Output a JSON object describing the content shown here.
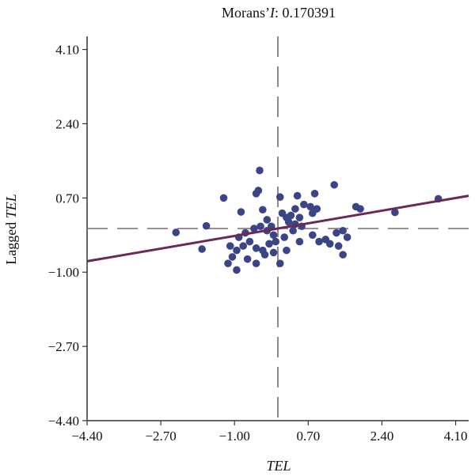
{
  "chart_data": {
    "type": "scatter",
    "title_prefix": "Morans’",
    "title_stat": "I",
    "title_value": ": 0.170391",
    "xlabel": "TEL",
    "ylabel_prefix": "Lagged ",
    "ylabel_var": "TEL",
    "xlim": [
      -4.4,
      4.4
    ],
    "ylim": [
      -4.4,
      4.4
    ],
    "xticks": [
      "−4.40",
      "−2.70",
      "−1.00",
      "0.70",
      "2.40",
      "4.10"
    ],
    "xtick_values": [
      -4.4,
      -2.7,
      -1.0,
      0.7,
      2.4,
      4.1
    ],
    "yticks": [
      "4.10",
      "2.40",
      "0.70",
      "−1.00",
      "−2.70",
      "−4.40"
    ],
    "ytick_values": [
      4.1,
      2.4,
      0.7,
      -1.0,
      -2.7,
      -4.4
    ],
    "mean_lines": {
      "x": 0.0,
      "y": 0.0
    },
    "regression": {
      "slope": 0.170391,
      "intercept": 0.0
    },
    "colors": {
      "points": "#3b4585",
      "regression": "#6b2a55",
      "mean_lines": "#7a6a72",
      "axes": "#333333"
    },
    "points": [
      [
        -2.35,
        -0.09
      ],
      [
        -1.65,
        0.06
      ],
      [
        -1.75,
        -0.47
      ],
      [
        -1.25,
        0.7
      ],
      [
        -0.45,
        0.87
      ],
      [
        -0.5,
        0.8
      ],
      [
        -0.42,
        1.33
      ],
      [
        -0.35,
        0.43
      ],
      [
        -0.85,
        0.38
      ],
      [
        0.05,
        0.72
      ],
      [
        0.45,
        0.75
      ],
      [
        0.85,
        0.8
      ],
      [
        1.3,
        1.0
      ],
      [
        1.8,
        0.5
      ],
      [
        1.9,
        0.45
      ],
      [
        2.7,
        0.37
      ],
      [
        3.7,
        0.68
      ],
      [
        -0.9,
        -0.2
      ],
      [
        -0.75,
        -0.1
      ],
      [
        -0.55,
        0.0
      ],
      [
        -0.4,
        0.05
      ],
      [
        -0.25,
        -0.05
      ],
      [
        -0.1,
        -0.15
      ],
      [
        0.1,
        0.35
      ],
      [
        0.2,
        0.25
      ],
      [
        0.3,
        0.3
      ],
      [
        0.4,
        0.1
      ],
      [
        0.5,
        0.25
      ],
      [
        0.6,
        0.55
      ],
      [
        0.75,
        0.5
      ],
      [
        0.9,
        0.45
      ],
      [
        0.8,
        0.35
      ],
      [
        0.55,
        0.05
      ],
      [
        0.35,
        -0.05
      ],
      [
        0.15,
        -0.2
      ],
      [
        -0.05,
        -0.3
      ],
      [
        -0.2,
        -0.35
      ],
      [
        -0.35,
        -0.5
      ],
      [
        -0.5,
        -0.45
      ],
      [
        -0.65,
        -0.3
      ],
      [
        -0.8,
        -0.4
      ],
      [
        -0.95,
        -0.5
      ],
      [
        -1.1,
        -0.4
      ],
      [
        -1.15,
        -0.8
      ],
      [
        -0.95,
        -0.95
      ],
      [
        -1.05,
        -0.65
      ],
      [
        -0.7,
        -0.7
      ],
      [
        -0.5,
        -0.8
      ],
      [
        -0.3,
        -0.6
      ],
      [
        -0.1,
        -0.55
      ],
      [
        0.05,
        -0.8
      ],
      [
        0.2,
        -0.5
      ],
      [
        0.5,
        -0.3
      ],
      [
        0.8,
        -0.15
      ],
      [
        0.95,
        -0.3
      ],
      [
        1.1,
        -0.25
      ],
      [
        1.2,
        -0.35
      ],
      [
        1.4,
        -0.4
      ],
      [
        1.35,
        -0.1
      ],
      [
        1.5,
        -0.05
      ],
      [
        1.5,
        -0.6
      ],
      [
        1.6,
        -0.2
      ],
      [
        -0.15,
        0.05
      ],
      [
        0.25,
        0.15
      ],
      [
        0.4,
        0.45
      ],
      [
        -0.25,
        0.2
      ]
    ]
  }
}
